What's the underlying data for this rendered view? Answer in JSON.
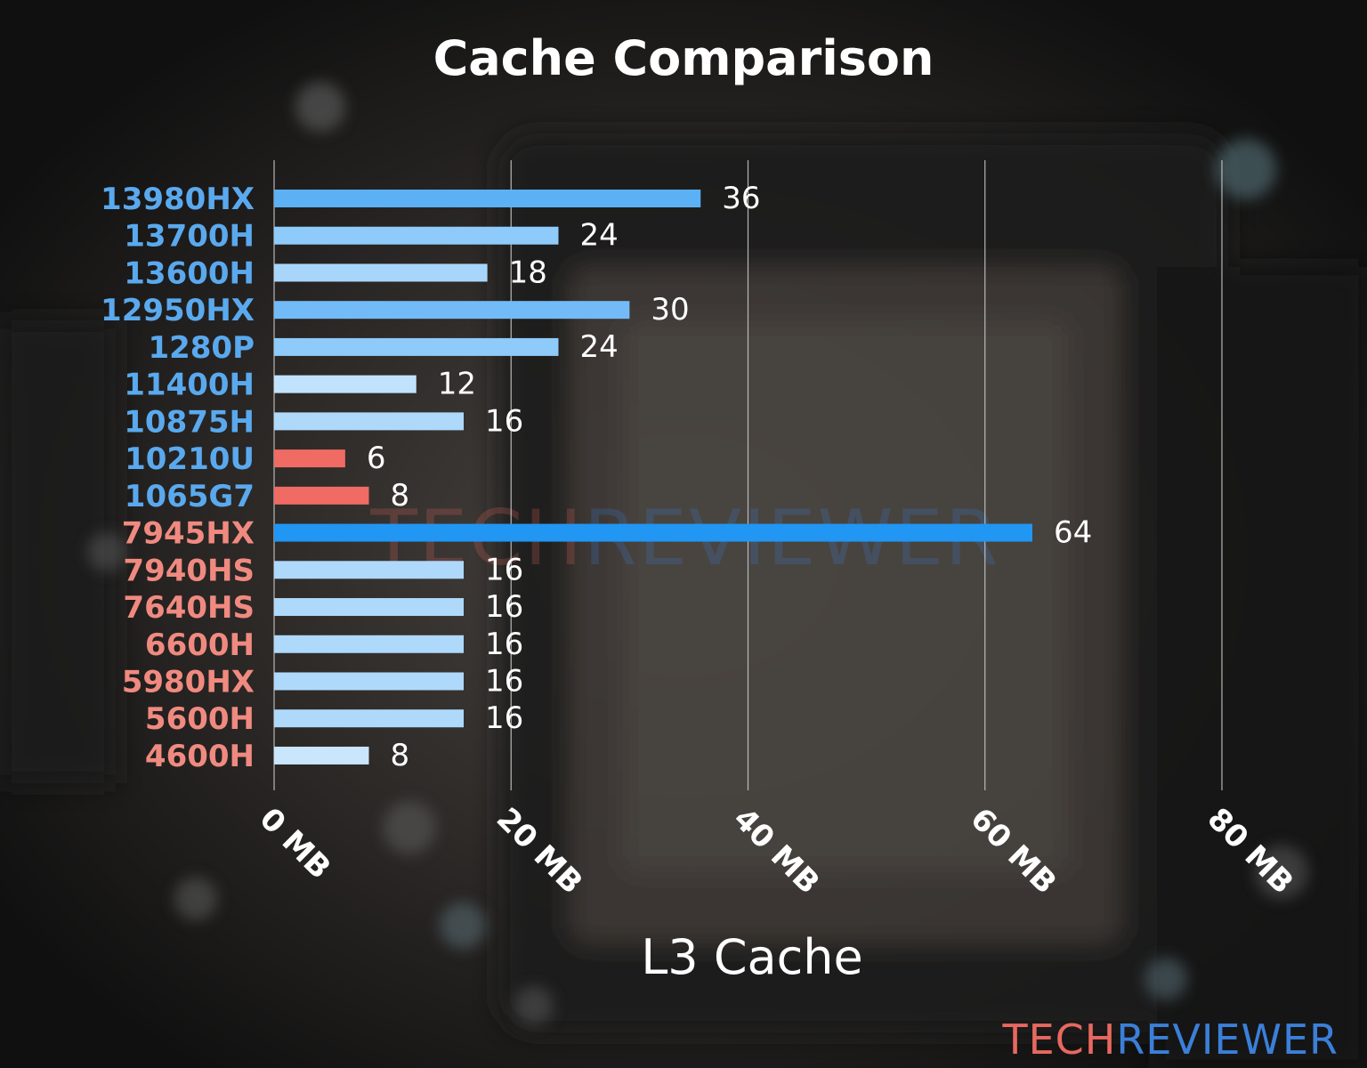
{
  "chart_data": {
    "type": "bar",
    "orientation": "horizontal",
    "title": "Cache Comparison",
    "xlabel": "L3 Cache",
    "ylabel": "",
    "xlim": [
      0,
      80
    ],
    "xticks": [
      0,
      20,
      40,
      60,
      80
    ],
    "xtick_labels": [
      "0 MB",
      "20 MB",
      "40 MB",
      "60 MB",
      "80 MB"
    ],
    "grid": "vertical",
    "categories": [
      "13980HX",
      "13700H",
      "13600H",
      "12950HX",
      "1280P",
      "11400H",
      "10875H",
      "10210U",
      "1065G7",
      "7945HX",
      "7940HS",
      "7640HS",
      "6600H",
      "5980HX",
      "5600H",
      "4600H"
    ],
    "values": [
      36,
      24,
      18,
      30,
      24,
      12,
      16,
      6,
      8,
      64,
      16,
      16,
      16,
      16,
      16,
      8
    ],
    "value_labels": [
      "36",
      "24",
      "18",
      "30",
      "24",
      "12",
      "16",
      "6",
      "8",
      "64",
      "16",
      "16",
      "16",
      "16",
      "16",
      "8"
    ],
    "label_colors": [
      "#5aa9ee",
      "#5aa9ee",
      "#5aa9ee",
      "#5aa9ee",
      "#5aa9ee",
      "#5aa9ee",
      "#5aa9ee",
      "#5aa9ee",
      "#5aa9ee",
      "#f08a80",
      "#f08a80",
      "#f08a80",
      "#f08a80",
      "#f08a80",
      "#f08a80",
      "#f08a80"
    ],
    "bar_colors": [
      "#5cb0f4",
      "#8ecbfa",
      "#a8d6fb",
      "#72bbf6",
      "#8ecbfa",
      "#c1e2fc",
      "#afd9fb",
      "#ef6b63",
      "#ef6b63",
      "#2196f3",
      "#afd9fb",
      "#afd9fb",
      "#afd9fb",
      "#afd9fb",
      "#afd9fb",
      "#c9e6fd"
    ]
  },
  "watermark": {
    "part1": "TECH",
    "part2": "REVIEWER"
  },
  "logo": {
    "part1": "TECH",
    "part2": "REVIEWER",
    "color1": "#e8685f",
    "color2": "#3b7fd8"
  }
}
